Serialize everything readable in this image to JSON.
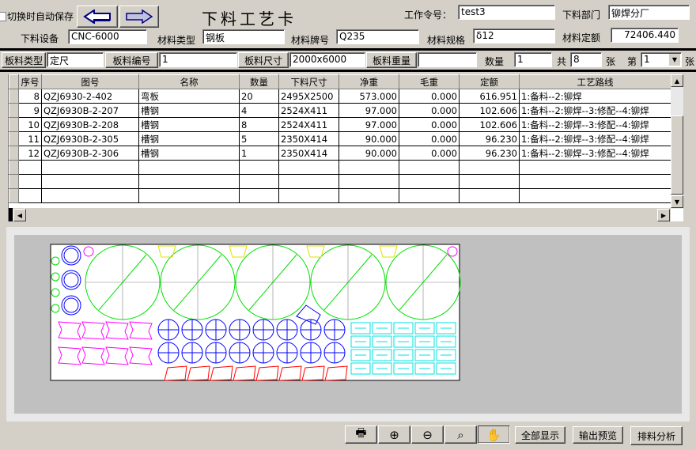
{
  "header": {
    "autosave_label": "切换时自动保存",
    "autosave_checked": false,
    "title": "下料工艺卡",
    "prev_icon": "arrow-left-icon",
    "next_icon": "arrow-right-icon"
  },
  "fields": {
    "work_order": {
      "label": "工作令号：",
      "value": "test3"
    },
    "dept": {
      "label": "下料部门",
      "value": "铆焊分厂"
    },
    "equipment": {
      "label": "下料设备",
      "value": "CNC-6000"
    },
    "material_type": {
      "label": "材料类型",
      "value": "钢板"
    },
    "material_grade": {
      "label": "材料牌号",
      "value": "Q235"
    },
    "material_spec": {
      "label": "材料规格",
      "value": "δ12"
    },
    "material_quota": {
      "label": "材料定额",
      "value": "72406.440"
    }
  },
  "sheet": {
    "type": {
      "label": "板料类型",
      "value": "定尺"
    },
    "number": {
      "label": "板料编号",
      "value": "1"
    },
    "size": {
      "label": "板料尺寸",
      "value": "2000x6000"
    },
    "weight": {
      "label": "板料重量",
      "value": ""
    },
    "qty": {
      "label": "数量",
      "value": "1"
    },
    "total_prefix": "共",
    "total": "8",
    "total_unit": "张",
    "page_prefix": "第",
    "page": "1",
    "page_unit": "张"
  },
  "table": {
    "columns": [
      "序号",
      "图号",
      "名称",
      "数量",
      "下料尺寸",
      "净重",
      "毛重",
      "定额",
      "工艺路线"
    ],
    "rows": [
      [
        "8",
        "QZJ6930-2-402",
        "弯板",
        "20",
        "2495X2500",
        "573.000",
        "0.000",
        "616.951",
        "1:备料--2:铆焊"
      ],
      [
        "9",
        "QZJ6930B-2-207",
        "槽钢",
        "4",
        "2524X411",
        "97.000",
        "0.000",
        "102.606",
        "1:备料--2:铆焊--3:修配--4:铆焊"
      ],
      [
        "10",
        "QZJ6930B-2-208",
        "槽钢",
        "8",
        "2524X411",
        "97.000",
        "0.000",
        "102.606",
        "1:备料--2:铆焊--3:修配--4:铆焊"
      ],
      [
        "11",
        "QZJ6930B-2-305",
        "槽钢",
        "5",
        "2350X414",
        "90.000",
        "0.000",
        "96.230",
        "1:备料--2:铆焊--3:修配--4:铆焊"
      ],
      [
        "12",
        "QZJ6930B-2-306",
        "槽钢",
        "1",
        "2350X414",
        "90.000",
        "0.000",
        "96.230",
        "1:备料--2:铆焊--3:修配--4:铆焊"
      ]
    ]
  },
  "toolbar": {
    "tools": [
      "printer-icon",
      "zoom-in-icon",
      "zoom-out-icon",
      "zoom-window-icon",
      "pan-hand-icon"
    ],
    "show_all": "全部显示",
    "output_preview": "输出预览",
    "nesting_analysis": "排料分析"
  },
  "colors": {
    "parts_circle": "#00e000",
    "parts_blue": "#0000ff",
    "parts_magenta": "#ff00ff",
    "parts_cyan": "#00e0e0",
    "parts_red": "#ff0000",
    "parts_yellow": "#e0e000",
    "canvas": "#c0c0c0"
  }
}
